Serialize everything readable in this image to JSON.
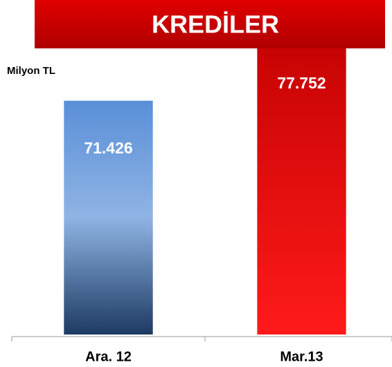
{
  "chart_data": {
    "type": "bar",
    "title": "KREDİLER",
    "unit_label": "Milyon TL",
    "categories": [
      "Ara. 12",
      "Mar.13"
    ],
    "values": [
      71426,
      77752
    ],
    "value_labels": [
      "71.426",
      "77.752"
    ],
    "colors": [
      "#5a8fd8",
      "#c00000"
    ],
    "ylim": [
      55700,
      78200
    ]
  }
}
